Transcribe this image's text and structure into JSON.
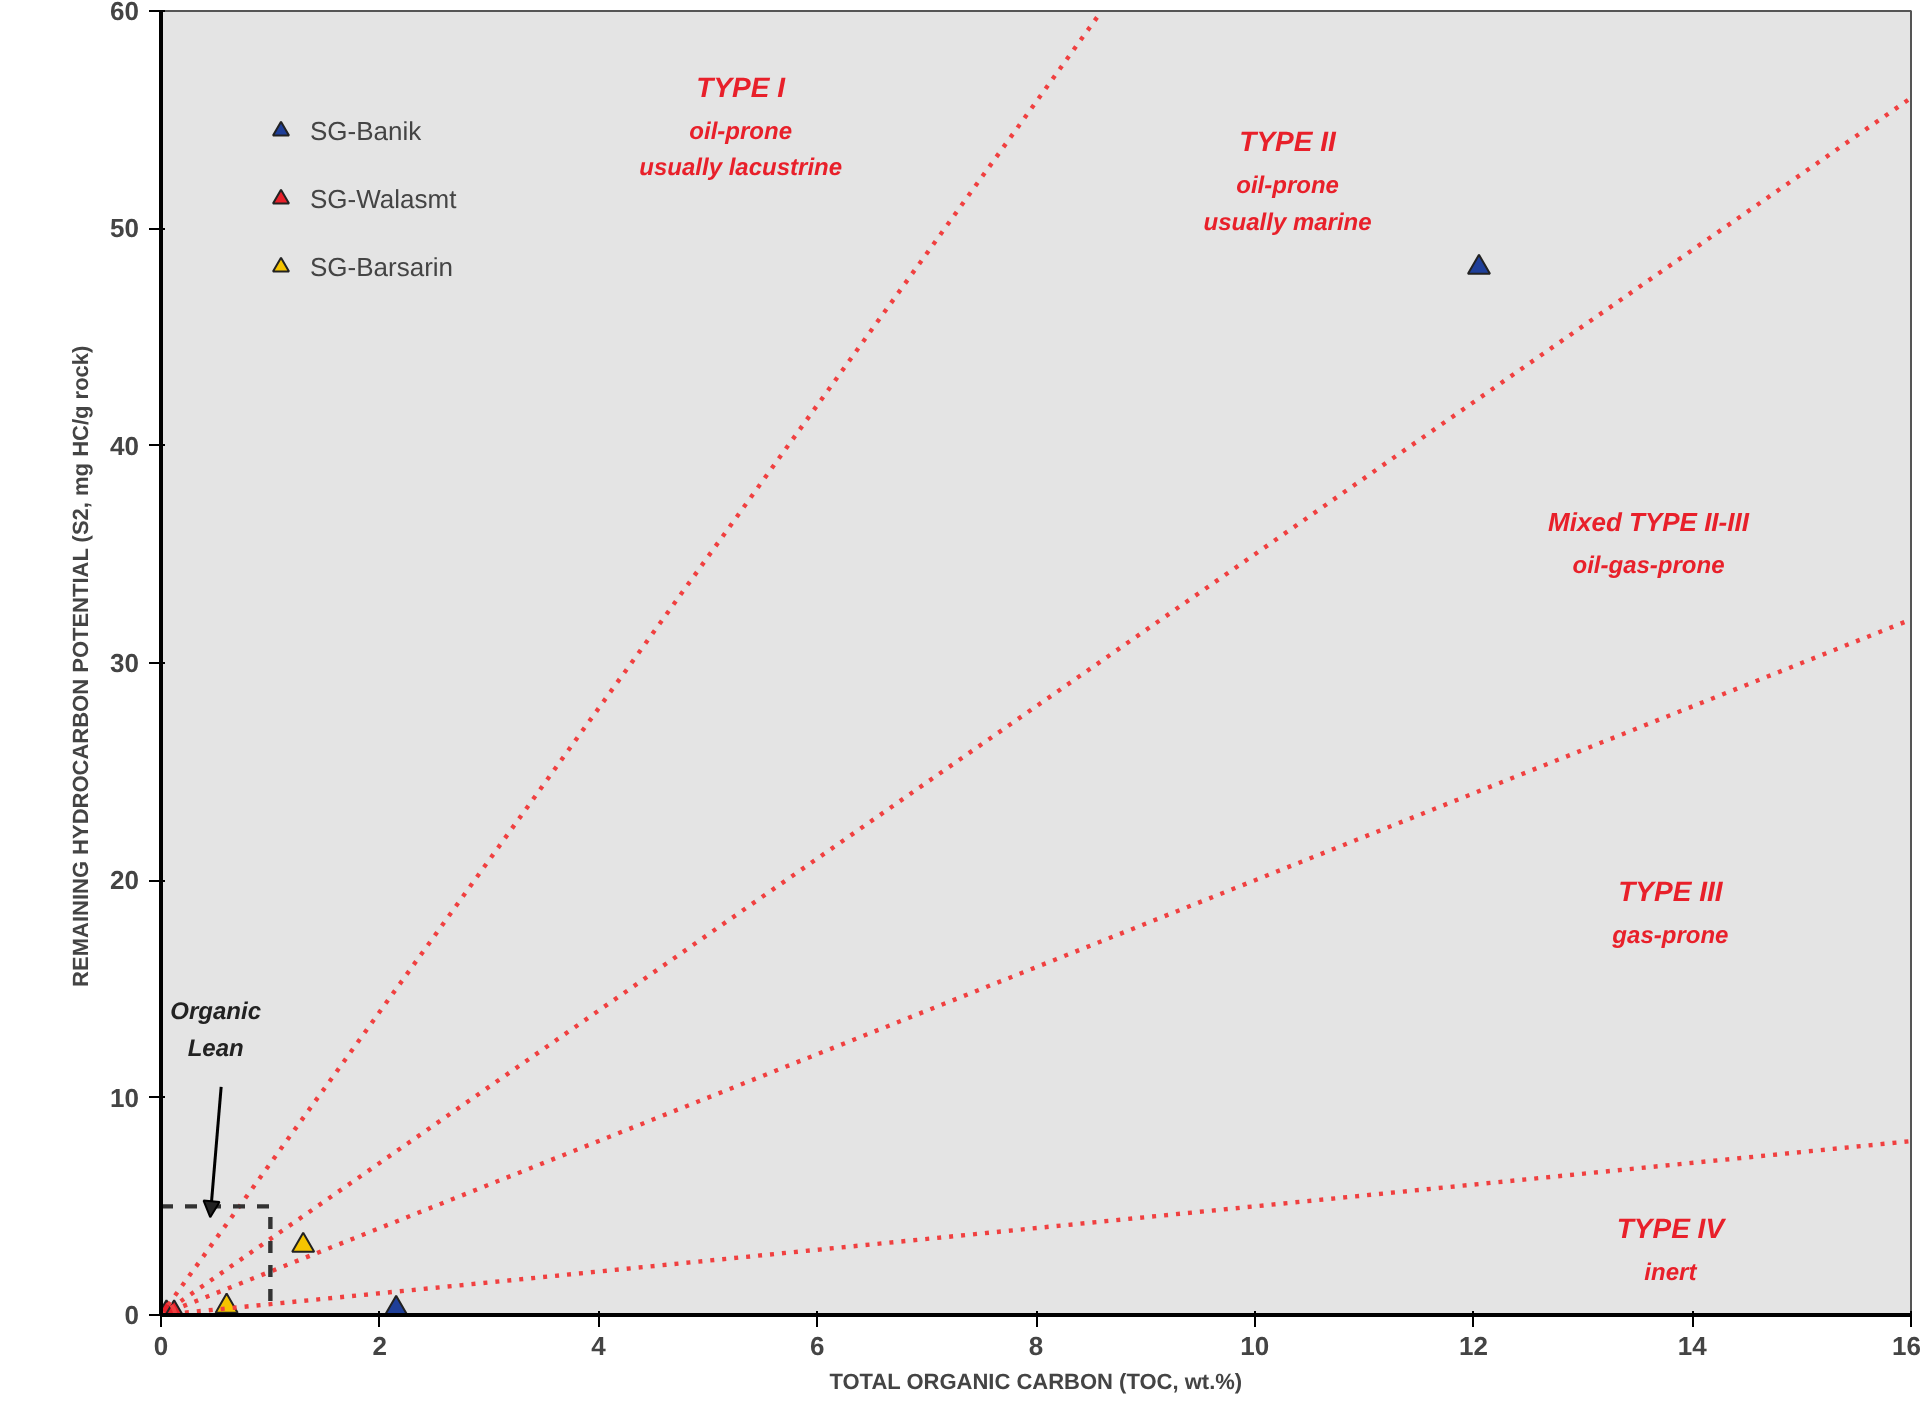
{
  "chart_data": {
    "type": "scatter",
    "xlabel": "TOTAL ORGANIC CARBON (TOC, wt.%)",
    "ylabel": "REMAINING HYDROCARBON POTENTIAL (S2, mg HC/g  rock)",
    "xlim": [
      0,
      16
    ],
    "ylim": [
      0,
      60
    ],
    "xticks": [
      0,
      2,
      4,
      6,
      8,
      10,
      12,
      14,
      16
    ],
    "yticks": [
      0,
      10,
      20,
      30,
      40,
      50,
      60
    ],
    "grid": false,
    "legend": "top left",
    "marker": "triangle",
    "series": [
      {
        "name": "SG-Banik",
        "color": "#1f3f99",
        "x": [
          2.15,
          12.05
        ],
        "values": [
          0.3,
          48.2
        ]
      },
      {
        "name": "SG-Walasmt",
        "color": "#e8202a",
        "x": [
          0.05,
          0.12
        ],
        "values": [
          0.1,
          0.1
        ]
      },
      {
        "name": "SG-Barsarin",
        "color": "#f5c400",
        "x": [
          0.6,
          1.3
        ],
        "values": [
          0.4,
          3.2
        ]
      },
      {
        "type": "line",
        "color": "#f04040",
        "line_style": "dotted",
        "marker": "none",
        "x": [
          0,
          8.6
        ],
        "values": [
          0,
          60
        ]
      },
      {
        "type": "line",
        "color": "#f04040",
        "line_style": "dotted",
        "marker": "none",
        "x": [
          0,
          16
        ],
        "values": [
          0,
          56
        ]
      },
      {
        "type": "line",
        "color": "#f04040",
        "line_style": "dotted",
        "marker": "none",
        "x": [
          0,
          16
        ],
        "values": [
          0,
          32
        ]
      },
      {
        "type": "line",
        "color": "#f04040",
        "line_style": "dotted",
        "marker": "none",
        "x": [
          0,
          16
        ],
        "values": [
          0,
          8
        ]
      },
      {
        "type": "line",
        "color": "#333333",
        "line_style": "dashed",
        "marker": "none",
        "x": [
          0,
          1,
          1
        ],
        "values": [
          5,
          5,
          0
        ]
      }
    ],
    "annotations": [
      "TYPE I",
      "oil-prone",
      "usually lacustrine",
      "TYPE II",
      "oil-prone",
      "usually marine",
      "Mixed TYPE II-III",
      "oil-gas-prone",
      "TYPE III",
      "gas-prone",
      "TYPE IV",
      "inert",
      "Organic",
      "Lean"
    ]
  }
}
